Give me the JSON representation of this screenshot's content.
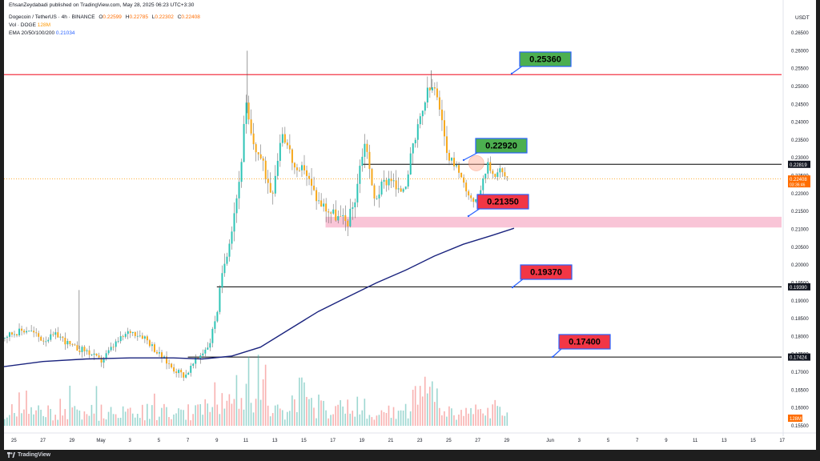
{
  "header": {
    "publisher": "EhsanZeydabadi published on TradingView.com, May 28, 2025 06:23 UTC+3:30",
    "symbol": "Dogecoin / TetherUS · 4h · BINANCE",
    "ohlc": [
      {
        "label": "O",
        "value": "0.22599"
      },
      {
        "label": "H",
        "value": "0.22785"
      },
      {
        "label": "L",
        "value": "0.22302"
      },
      {
        "label": "C",
        "value": "0.22408"
      }
    ],
    "vol_label": "Vol · DOGE",
    "vol_value": "128M",
    "ema_label": "EMA 20/50/100/200",
    "ema_value": "0.21034"
  },
  "axis": {
    "currency": "USDT",
    "price_tags": {
      "current_price": "0.22408",
      "countdown": "03:36:46",
      "resistance": "0.22819",
      "support": "0.19390",
      "support_low": "0.17424",
      "volume": "128M"
    }
  },
  "annotations": [
    {
      "text": "0.25360",
      "color": "#4caf50"
    },
    {
      "text": "0.22920",
      "color": "#4caf50"
    },
    {
      "text": "0.21350",
      "color": "#f23645"
    },
    {
      "text": "0.19370",
      "color": "#f23645"
    },
    {
      "text": "0.17400",
      "color": "#f23645"
    }
  ],
  "footer": {
    "brand": "TradingView"
  },
  "chart_data": {
    "type": "candlestick",
    "symbol": "DOGEUSDT",
    "timeframe": "4h",
    "y_range": [
      0.1545,
      0.268
    ],
    "y_ticks": [
      "0.26500",
      "0.26000",
      "0.25500",
      "0.25000",
      "0.24500",
      "0.24000",
      "0.23500",
      "0.23000",
      "0.22500",
      "0.22000",
      "0.21500",
      "0.21000",
      "0.20500",
      "0.20000",
      "0.19500",
      "0.19000",
      "0.18500",
      "0.18000",
      "0.17500",
      "0.17000",
      "0.16500",
      "0.16000",
      "0.15500"
    ],
    "x_labels": [
      "25",
      "27",
      "29",
      "May",
      "3",
      "5",
      "7",
      "9",
      "11",
      "13",
      "15",
      "17",
      "19",
      "21",
      "23",
      "25",
      "27",
      "29",
      "Jun",
      "3",
      "5",
      "7",
      "9",
      "11",
      "13",
      "15",
      "17"
    ],
    "x_label_days": [
      -6,
      -4,
      -2,
      0,
      2,
      4,
      6,
      8,
      10,
      12,
      14,
      16,
      18,
      20,
      22,
      24,
      26,
      28,
      31,
      33,
      35,
      37,
      39,
      41,
      43,
      45,
      47
    ],
    "price_path": [
      [
        -6.8,
        0.18
      ],
      [
        -6,
        0.181
      ],
      [
        -5,
        0.182
      ],
      [
        -4,
        0.179
      ],
      [
        -3,
        0.1805
      ],
      [
        -2,
        0.177
      ],
      [
        -1,
        0.176
      ],
      [
        0,
        0.173
      ],
      [
        1,
        0.178
      ],
      [
        2,
        0.1815
      ],
      [
        3,
        0.18
      ],
      [
        4,
        0.175
      ],
      [
        5,
        0.171
      ],
      [
        5.8,
        0.169
      ],
      [
        6.5,
        0.173
      ],
      [
        7.5,
        0.178
      ],
      [
        8,
        0.187
      ],
      [
        8.5,
        0.2
      ],
      [
        9,
        0.21
      ],
      [
        9.6,
        0.225
      ],
      [
        10,
        0.245
      ],
      [
        10.4,
        0.235
      ],
      [
        11,
        0.23
      ],
      [
        11.8,
        0.22
      ],
      [
        12.5,
        0.238
      ],
      [
        13,
        0.232
      ],
      [
        13.6,
        0.224
      ],
      [
        14,
        0.228
      ],
      [
        14.5,
        0.222
      ],
      [
        15,
        0.218
      ],
      [
        15.8,
        0.215
      ],
      [
        16.5,
        0.213
      ],
      [
        17,
        0.212
      ],
      [
        17.5,
        0.218
      ],
      [
        18,
        0.231
      ],
      [
        18.3,
        0.235
      ],
      [
        18.8,
        0.218
      ],
      [
        19.5,
        0.223
      ],
      [
        20,
        0.225
      ],
      [
        20.5,
        0.22
      ],
      [
        21,
        0.223
      ],
      [
        21.5,
        0.232
      ],
      [
        22,
        0.24
      ],
      [
        22.5,
        0.248
      ],
      [
        23,
        0.25
      ],
      [
        23.5,
        0.24
      ],
      [
        24,
        0.23
      ],
      [
        24.5,
        0.228
      ],
      [
        25,
        0.223
      ],
      [
        25.5,
        0.219
      ],
      [
        26,
        0.217
      ],
      [
        26.3,
        0.224
      ],
      [
        26.7,
        0.228
      ],
      [
        27.1,
        0.225
      ],
      [
        27.5,
        0.227
      ],
      [
        28,
        0.224
      ]
    ],
    "ema200": [
      [
        -6.8,
        0.1715
      ],
      [
        -4,
        0.173
      ],
      [
        -1,
        0.1737
      ],
      [
        2,
        0.174
      ],
      [
        5,
        0.174
      ],
      [
        7,
        0.1737
      ],
      [
        9,
        0.1745
      ],
      [
        11,
        0.177
      ],
      [
        13,
        0.182
      ],
      [
        15,
        0.187
      ],
      [
        17,
        0.191
      ],
      [
        19,
        0.195
      ],
      [
        21,
        0.1985
      ],
      [
        23,
        0.2025
      ],
      [
        25,
        0.2058
      ],
      [
        27,
        0.2083
      ],
      [
        28.5,
        0.2103
      ]
    ],
    "horizontal_levels": [
      {
        "name": "resistance-top",
        "price": 0.2533,
        "color": "#f23645",
        "from_day": -6.8
      },
      {
        "name": "resistance",
        "price": 0.22819,
        "color": "#000000",
        "from_day": 18
      },
      {
        "name": "support",
        "price": 0.1939,
        "color": "#000000",
        "from_day": 8
      },
      {
        "name": "support-low",
        "price": 0.17424,
        "color": "#000000",
        "from_day": 6
      }
    ],
    "current_price": 0.22408,
    "support_zone": {
      "from_day": 15.5,
      "price_low": 0.2105,
      "price_high": 0.2135
    },
    "volume": {
      "recent": "128M"
    }
  }
}
